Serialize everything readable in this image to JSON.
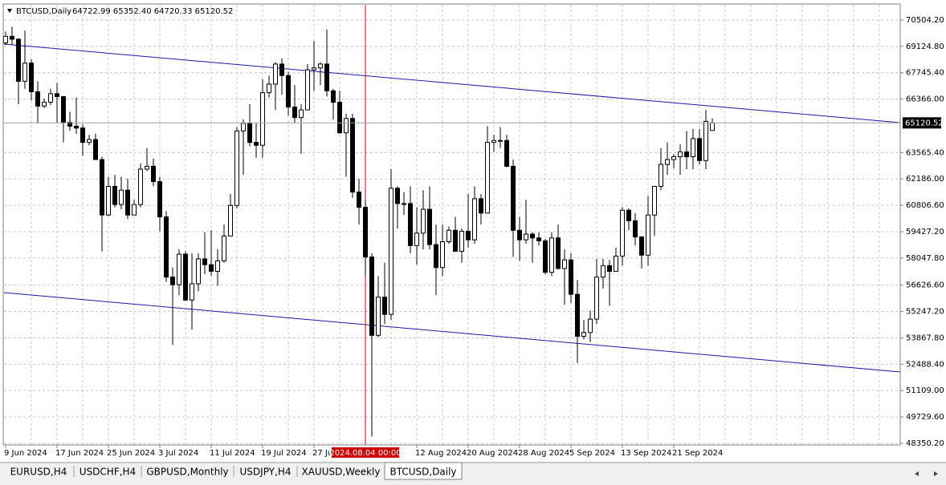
{
  "chart_data": {
    "type": "candlestick",
    "symbol": "BTCUSD,Daily",
    "ohlc_label": "64722.99 65352.40 64720.33 65120.52",
    "crosshair_label": "2024.08.04 00:00",
    "tabs": [
      "EURUSD,H4",
      "USDCHF,H4",
      "GBPUSD,Monthly",
      "USDJPY,H4",
      "XAUUSD,Weekly",
      "BTCUSD,Daily"
    ],
    "active_tab": 5,
    "categories": [
      "9 Jun 2024",
      null,
      null,
      null,
      null,
      null,
      null,
      null,
      "17 Jun 2024",
      null,
      null,
      null,
      null,
      null,
      null,
      null,
      "25 Jun 2024",
      null,
      null,
      null,
      null,
      null,
      null,
      null,
      "3 Jul 2024",
      null,
      null,
      null,
      null,
      null,
      null,
      null,
      "11 Jul 2024",
      null,
      null,
      null,
      null,
      null,
      null,
      null,
      "19 Jul 2024",
      null,
      null,
      null,
      null,
      null,
      null,
      null,
      "27 Jul 2024",
      null,
      null,
      null,
      null,
      null,
      null,
      null,
      null,
      null,
      null,
      null,
      null,
      null,
      null,
      null,
      "12 Aug 2024",
      null,
      null,
      null,
      null,
      null,
      null,
      null,
      "20 Aug 2024",
      null,
      null,
      null,
      null,
      null,
      null,
      null,
      "28 Aug 2024",
      null,
      null,
      null,
      null,
      null,
      null,
      null,
      "5 Sep 2024",
      null,
      null,
      null,
      null,
      null,
      null,
      null,
      "13 Sep 2024",
      null,
      null,
      null,
      null,
      null,
      null,
      null,
      "21 Sep 2024",
      null,
      null,
      null,
      null,
      null,
      null
    ],
    "open": [
      69300,
      69650,
      69500,
      67300,
      68250,
      66750,
      66000,
      66200,
      66650,
      66500,
      65150,
      64950,
      64850,
      64100,
      64250,
      63200,
      60300,
      61800,
      60850,
      61600,
      60300,
      60850,
      62700,
      62850,
      62050,
      60200,
      57050,
      56650,
      58250,
      55850,
      56700,
      58000,
      57700,
      57350,
      57900,
      59200,
      60800,
      64700,
      65100,
      64100,
      63950,
      66700,
      67150,
      68200,
      67600,
      65950,
      65400,
      65800,
      67900,
      68000,
      68200,
      66800,
      66200,
      64600,
      65350,
      61500,
      60700,
      58100,
      54000,
      56000,
      55100,
      61700,
      60900,
      60900,
      58700,
      59350,
      60600,
      58750,
      57550,
      58900,
      59500,
      58400,
      59450,
      59000,
      61150,
      60400,
      64100,
      64200,
      64200,
      62850,
      59500,
      59000,
      59300,
      59100,
      58950,
      57300,
      59100,
      57500,
      57950,
      56150,
      53950,
      54150,
      54850,
      57050,
      57650,
      57350,
      58150,
      60550,
      60000,
      59150,
      58200,
      60300,
      61800,
      62950,
      63200,
      63350,
      63600,
      63350,
      64300,
      63150,
      64722.99
    ],
    "high": [
      69900,
      70150,
      69560,
      69950,
      68450,
      67300,
      66400,
      66900,
      67200,
      66500,
      65700,
      66450,
      65050,
      64500,
      64550,
      63350,
      62300,
      62400,
      62300,
      62200,
      61100,
      63000,
      63800,
      63250,
      62300,
      60500,
      57550,
      58500,
      58400,
      58300,
      58300,
      59400,
      59500,
      58500,
      59800,
      61400,
      64900,
      65300,
      66100,
      65100,
      67400,
      67600,
      68300,
      68500,
      67800,
      67100,
      66100,
      68200,
      69400,
      68300,
      70000,
      66900,
      66800,
      65600,
      65600,
      62200,
      61100,
      58300,
      57100,
      57800,
      62700,
      61800,
      61500,
      61800,
      60700,
      61600,
      61800,
      59800,
      59800,
      59700,
      60200,
      59600,
      61400,
      61800,
      61400,
      64950,
      64500,
      64900,
      64500,
      63200,
      60200,
      61100,
      59400,
      59400,
      59050,
      59400,
      59800,
      58500,
      58300,
      56900,
      54800,
      55300,
      58000,
      58000,
      57950,
      58600,
      60700,
      60650,
      60400,
      59200,
      61300,
      61800,
      63800,
      64100,
      63500,
      64000,
      64700,
      64800,
      64800,
      65800,
      65352.4
    ],
    "low": [
      69200,
      69200,
      66100,
      66900,
      66300,
      65100,
      65900,
      66050,
      65100,
      64100,
      64700,
      64550,
      63400,
      63950,
      63200,
      58400,
      60250,
      60700,
      60600,
      60100,
      60300,
      60700,
      62600,
      61800,
      59450,
      56800,
      53500,
      56100,
      55800,
      54300,
      56300,
      57200,
      57100,
      56600,
      57800,
      59200,
      60650,
      62400,
      63900,
      63300,
      63300,
      66450,
      65800,
      66600,
      65500,
      65100,
      63500,
      65800,
      66800,
      67100,
      66500,
      65300,
      64550,
      62300,
      61200,
      59800,
      57100,
      48700,
      53900,
      54600,
      54800,
      59600,
      60300,
      58300,
      57700,
      58500,
      58500,
      56100,
      57100,
      58800,
      58400,
      57800,
      58600,
      58800,
      59800,
      60400,
      63600,
      63800,
      62800,
      58100,
      57900,
      58800,
      57800,
      58700,
      57200,
      57100,
      57450,
      55600,
      55700,
      52550,
      53800,
      53650,
      54600,
      56450,
      55550,
      57350,
      57650,
      59500,
      58700,
      57500,
      57650,
      59200,
      61600,
      62400,
      62750,
      62400,
      62700,
      62700,
      62950,
      62700,
      64720.33
    ],
    "close": [
      69650,
      69500,
      67300,
      68250,
      66750,
      66000,
      66200,
      66650,
      66500,
      65150,
      64950,
      64850,
      64100,
      64250,
      63200,
      60300,
      61800,
      60850,
      61600,
      60300,
      60850,
      62700,
      62850,
      62050,
      60200,
      57050,
      56650,
      58250,
      55850,
      56700,
      58000,
      57700,
      57350,
      57900,
      59200,
      60800,
      64700,
      65100,
      64100,
      63950,
      66700,
      67150,
      68200,
      67600,
      65950,
      65400,
      65800,
      67900,
      68000,
      68200,
      66800,
      66200,
      64600,
      65350,
      61500,
      60700,
      58100,
      54000,
      56000,
      55100,
      61700,
      60900,
      60900,
      58700,
      59350,
      60600,
      58750,
      57550,
      58900,
      59500,
      58400,
      59450,
      59000,
      61150,
      60400,
      64100,
      64200,
      64200,
      62850,
      59500,
      59000,
      59300,
      59100,
      58950,
      57300,
      59100,
      57500,
      57950,
      56150,
      53950,
      54150,
      54850,
      57050,
      57650,
      57350,
      58150,
      60550,
      60000,
      59150,
      58200,
      60300,
      61800,
      62950,
      63200,
      63350,
      63600,
      63350,
      64300,
      63150,
      65200,
      65120.52
    ],
    "ylim": [
      48266,
      71217
    ],
    "yticks": [
      {
        "value": 70504.2,
        "label": "70504.20"
      },
      {
        "value": 69124.8,
        "label": "69124.80"
      },
      {
        "value": 67745.4,
        "label": "67745.40"
      },
      {
        "value": 66366,
        "label": "66366.00"
      },
      {
        "value": 63565.4,
        "label": "63565.40"
      },
      {
        "value": 62186,
        "label": "62186.00"
      },
      {
        "value": 60806.6,
        "label": "60806.60"
      },
      {
        "value": 59427.2,
        "label": "59427.20"
      },
      {
        "value": 58047.8,
        "label": "58047.80"
      },
      {
        "value": 56626.6,
        "label": "56626.60"
      },
      {
        "value": 55247.2,
        "label": "55247.20"
      },
      {
        "value": 53867.8,
        "label": "53867.80"
      },
      {
        "value": 52488.4,
        "label": "52488.40"
      },
      {
        "value": 51109,
        "label": "51109.00"
      },
      {
        "value": 49729.6,
        "label": "49729.60"
      },
      {
        "value": 48350.2,
        "label": "48350.20"
      }
    ],
    "trendlines": [
      {
        "start": 69245,
        "end": 65133,
        "color": "#1a1aa6"
      },
      {
        "start": 56238,
        "end": 52084,
        "color": "#1a1aa6"
      }
    ],
    "grid": true
  }
}
